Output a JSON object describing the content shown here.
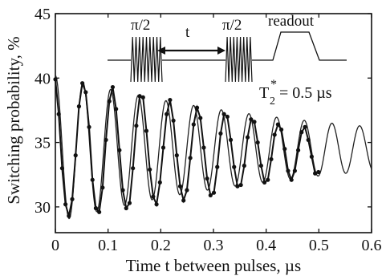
{
  "chart_data": {
    "type": "line",
    "xlabel": "Time t between pulses, µs",
    "ylabel": "Switching probability, %",
    "xlim": [
      0,
      0.6
    ],
    "ylim": [
      28,
      45
    ],
    "x_ticks": [
      "0",
      "0.1",
      "0.2",
      "0.3",
      "0.4",
      "0.5",
      "0.6"
    ],
    "y_ticks": [
      "30",
      "35",
      "40",
      "45"
    ],
    "grid": false,
    "fit_model": {
      "offset": 34.5,
      "amplitude": 5.7,
      "frequency_per_us": 19.05,
      "decay_time_us": 0.5,
      "x_range": [
        0,
        0.6
      ]
    },
    "series": [
      {
        "style": "measured points with connecting line",
        "x": [
          0.0,
          0.0064,
          0.0128,
          0.0192,
          0.0256,
          0.032,
          0.0384,
          0.0448,
          0.0512,
          0.0576,
          0.064,
          0.0704,
          0.0768,
          0.0832,
          0.0896,
          0.096,
          0.1024,
          0.1088,
          0.1152,
          0.1216,
          0.128,
          0.1344,
          0.1408,
          0.1472,
          0.1536,
          0.16,
          0.1664,
          0.1728,
          0.1792,
          0.1856,
          0.192,
          0.1984,
          0.2048,
          0.2112,
          0.2176,
          0.224,
          0.2304,
          0.2368,
          0.2432,
          0.2496,
          0.256,
          0.2624,
          0.2688,
          0.2752,
          0.2816,
          0.288,
          0.2944,
          0.3008,
          0.3072,
          0.3136,
          0.32,
          0.3264,
          0.3328,
          0.3392,
          0.3456,
          0.352,
          0.3584,
          0.3648,
          0.3712,
          0.3776,
          0.384,
          0.3904,
          0.3968,
          0.4032,
          0.4096,
          0.416,
          0.4224,
          0.4288,
          0.4352,
          0.4416,
          0.448,
          0.4544,
          0.4608,
          0.4672,
          0.4736,
          0.48,
          0.4864,
          0.4928,
          0.4992
        ],
        "y": [
          39.9,
          37.2,
          33.0,
          30.2,
          29.3,
          30.6,
          34.0,
          37.8,
          39.6,
          38.9,
          36.2,
          32.1,
          29.9,
          29.6,
          31.5,
          35.2,
          38.2,
          39.3,
          37.6,
          34.4,
          31.3,
          29.9,
          30.3,
          33.0,
          36.3,
          38.6,
          38.5,
          35.9,
          32.9,
          30.8,
          30.2,
          31.9,
          34.6,
          37.2,
          38.3,
          36.7,
          34.0,
          31.6,
          30.5,
          31.3,
          33.8,
          36.4,
          37.7,
          36.9,
          34.6,
          32.2,
          30.9,
          31.1,
          33.1,
          35.7,
          37.2,
          37.0,
          35.2,
          33.1,
          31.6,
          31.7,
          33.2,
          35.4,
          36.8,
          36.6,
          35.0,
          33.2,
          31.9,
          32.1,
          33.7,
          35.6,
          36.4,
          36.0,
          34.5,
          32.8,
          32.1,
          32.8,
          34.4,
          35.8,
          36.2,
          35.2,
          33.9,
          32.6,
          32.7
        ]
      }
    ],
    "inset": {
      "pulse1_label": "π/2",
      "delay_label": "t",
      "pulse2_label": "π/2",
      "readout_label": "readout"
    },
    "annotation": {
      "symbol": "T",
      "subscript": "2",
      "superscript": "*",
      "text": " = 0.5 µs"
    }
  }
}
